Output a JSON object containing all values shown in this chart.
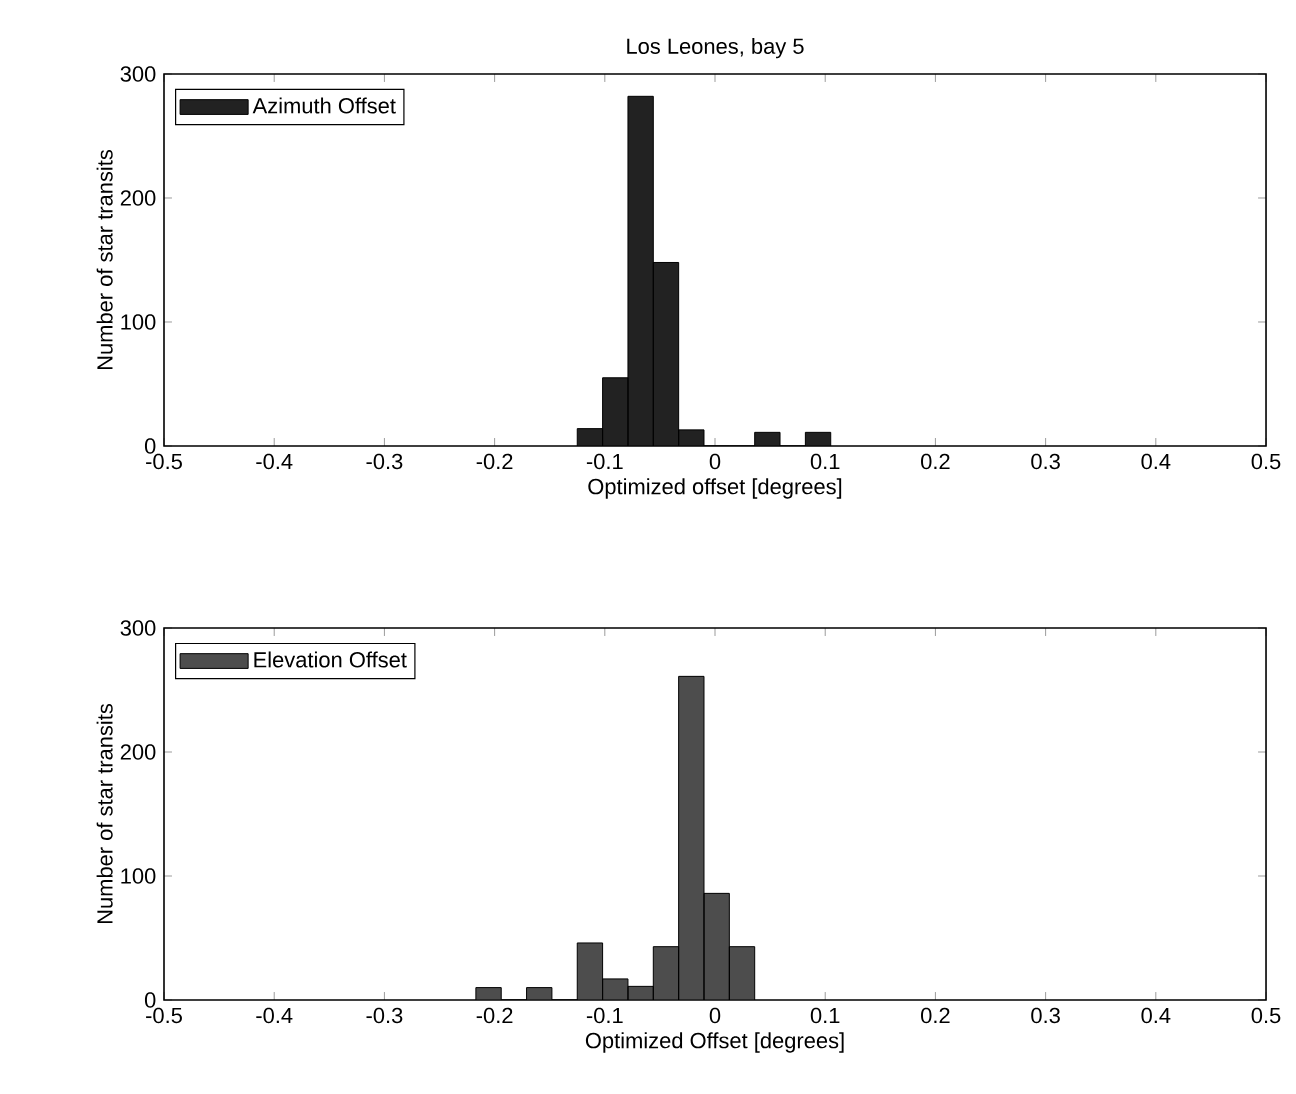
{
  "chart_data": [
    {
      "type": "histogram",
      "title": "Los Leones, bay 5",
      "xlabel": "Optimized offset [degrees]",
      "ylabel": "Number of star transits",
      "bins": [
        -0.125,
        -0.102,
        -0.079,
        -0.056,
        -0.033,
        -0.01,
        0.013,
        0.036,
        0.059,
        0.082,
        0.105
      ],
      "series": [
        {
          "name": "Azimuth Offset",
          "color": "#222222",
          "values": [
            14,
            55,
            282,
            148,
            13,
            0,
            0,
            11,
            0,
            11
          ]
        }
      ],
      "xlim": [
        -0.5,
        0.5
      ],
      "ylim": [
        0,
        300
      ],
      "xticks": [
        -0.5,
        -0.4,
        -0.3,
        -0.2,
        -0.1,
        0,
        0.1,
        0.2,
        0.3,
        0.4,
        0.5
      ],
      "yticks": [
        0,
        100,
        200,
        300
      ],
      "legend": "top left"
    },
    {
      "type": "histogram",
      "xlabel": "Optimized Offset [degrees]",
      "ylabel": "Number of star transits",
      "bins": [
        -0.217,
        -0.194,
        -0.171,
        -0.148,
        -0.125,
        -0.102,
        -0.079,
        -0.056,
        -0.033,
        -0.01,
        0.013,
        0.036
      ],
      "series": [
        {
          "name": "Elevation Offset",
          "color": "#4d4d4d",
          "values": [
            10,
            0,
            10,
            0,
            46,
            17,
            11,
            43,
            261,
            86,
            43
          ]
        }
      ],
      "xlim": [
        -0.5,
        0.5
      ],
      "ylim": [
        0,
        300
      ],
      "xticks": [
        -0.5,
        -0.4,
        -0.3,
        -0.2,
        -0.1,
        0,
        0.1,
        0.2,
        0.3,
        0.4,
        0.5
      ],
      "yticks": [
        0,
        100,
        200,
        300
      ],
      "legend": "top left"
    }
  ]
}
